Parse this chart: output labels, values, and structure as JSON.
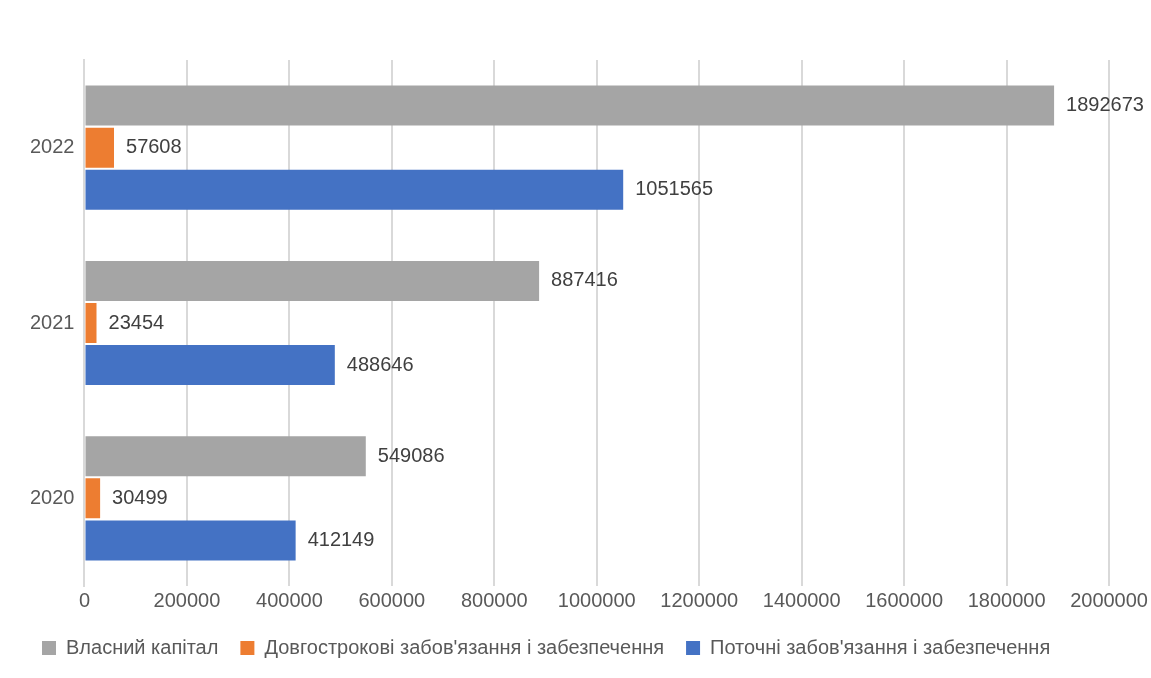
{
  "chart_data": {
    "type": "bar",
    "orientation": "horizontal",
    "categories": [
      "2022",
      "2021",
      "2020"
    ],
    "series": [
      {
        "name": "Власний капітал",
        "color": "#a5a5a5",
        "values": [
          1892673,
          887416,
          549086
        ]
      },
      {
        "name": "Довгострокові забов'язання і забезпечення",
        "color": "#ed7d31",
        "values": [
          57608,
          23454,
          30499
        ]
      },
      {
        "name": "Поточні забов'язання і забезпечення",
        "color": "#4472c4",
        "values": [
          1051565,
          488646,
          412149
        ]
      }
    ],
    "xlim": [
      0,
      2000000
    ],
    "xticks": [
      0,
      200000,
      400000,
      600000,
      800000,
      1000000,
      1200000,
      1400000,
      1600000,
      1800000,
      2000000
    ],
    "grid": "x",
    "legend": "bottom",
    "data_labels": true
  }
}
